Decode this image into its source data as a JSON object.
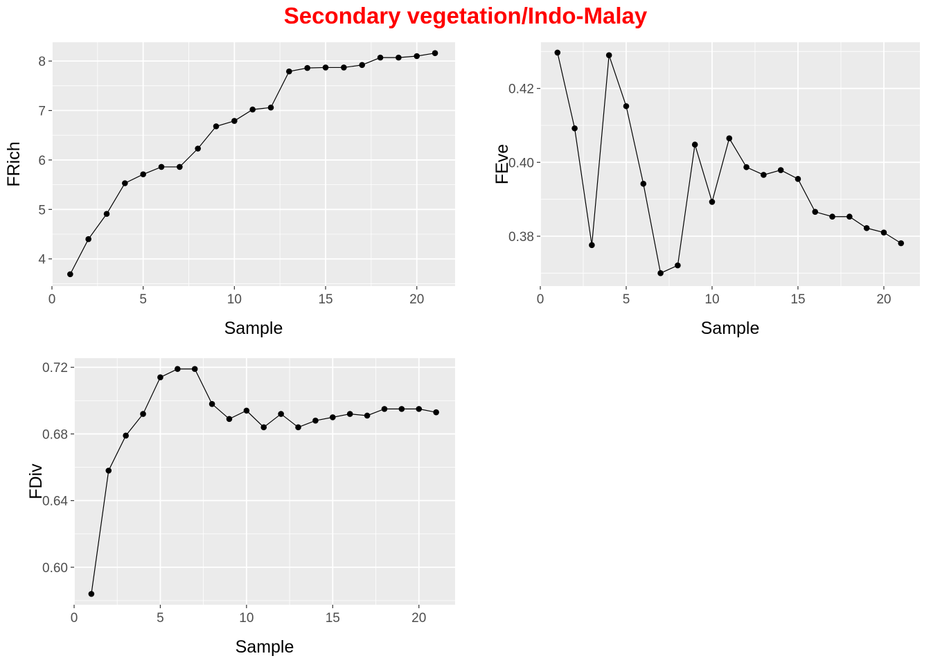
{
  "title": "Secondary vegetation/Indo-Malay",
  "colors": {
    "title": "#ff0000",
    "panel": "#ebebeb",
    "grid": "#ffffff",
    "line": "#000000",
    "tick_text": "#4d4d4d"
  },
  "chart_data": [
    {
      "type": "line",
      "xlabel": "Sample",
      "ylabel": "FRich",
      "xlim": [
        0,
        22.1
      ],
      "ylim": [
        3.45,
        8.38
      ],
      "xticks": [
        0,
        5,
        10,
        15,
        20
      ],
      "yticks": [
        4,
        5,
        6,
        7,
        8
      ],
      "ytick_labels": [
        "4",
        "5",
        "6",
        "7",
        "8"
      ],
      "grid": true,
      "markers": true,
      "x": [
        1,
        2,
        3,
        4,
        5,
        6,
        7,
        8,
        9,
        10,
        11,
        12,
        13,
        14,
        15,
        16,
        17,
        18,
        19,
        20,
        21
      ],
      "y": [
        3.69,
        4.4,
        4.91,
        5.53,
        5.71,
        5.86,
        5.86,
        6.23,
        6.68,
        6.79,
        7.02,
        7.06,
        7.79,
        7.86,
        7.87,
        7.87,
        7.92,
        8.07,
        8.07,
        8.1,
        8.16
      ]
    },
    {
      "type": "line",
      "xlabel": "Sample",
      "ylabel": "FEve",
      "xlim": [
        0,
        22.1
      ],
      "ylim": [
        0.3665,
        0.4325
      ],
      "xticks": [
        0,
        5,
        10,
        15,
        20
      ],
      "yticks": [
        0.38,
        0.4,
        0.42
      ],
      "ytick_labels": [
        "0.38",
        "0.40",
        "0.42"
      ],
      "grid": true,
      "markers": true,
      "x": [
        1,
        2,
        3,
        4,
        5,
        6,
        7,
        8,
        9,
        10,
        11,
        12,
        13,
        14,
        15,
        16,
        17,
        18,
        19,
        20,
        21
      ],
      "y": [
        0.4297,
        0.4092,
        0.3776,
        0.429,
        0.4152,
        0.3942,
        0.37,
        0.3721,
        0.4048,
        0.3893,
        0.4065,
        0.3987,
        0.3966,
        0.3979,
        0.3955,
        0.3866,
        0.3853,
        0.3853,
        0.3822,
        0.381,
        0.3781
      ]
    },
    {
      "type": "line",
      "xlabel": "Sample",
      "ylabel": "FDiv",
      "xlim": [
        0,
        22.1
      ],
      "ylim": [
        0.5775,
        0.7255
      ],
      "xticks": [
        0,
        5,
        10,
        15,
        20
      ],
      "yticks": [
        0.6,
        0.64,
        0.68,
        0.72
      ],
      "ytick_labels": [
        "0.60",
        "0.64",
        "0.68",
        "0.72"
      ],
      "grid": true,
      "markers": true,
      "x": [
        1,
        2,
        3,
        4,
        5,
        6,
        7,
        8,
        9,
        10,
        11,
        12,
        13,
        14,
        15,
        16,
        17,
        18,
        19,
        20,
        21
      ],
      "y": [
        0.584,
        0.658,
        0.679,
        0.692,
        0.714,
        0.719,
        0.719,
        0.698,
        0.689,
        0.694,
        0.684,
        0.692,
        0.684,
        0.688,
        0.69,
        0.692,
        0.691,
        0.695,
        0.695,
        0.695,
        0.693
      ]
    }
  ]
}
